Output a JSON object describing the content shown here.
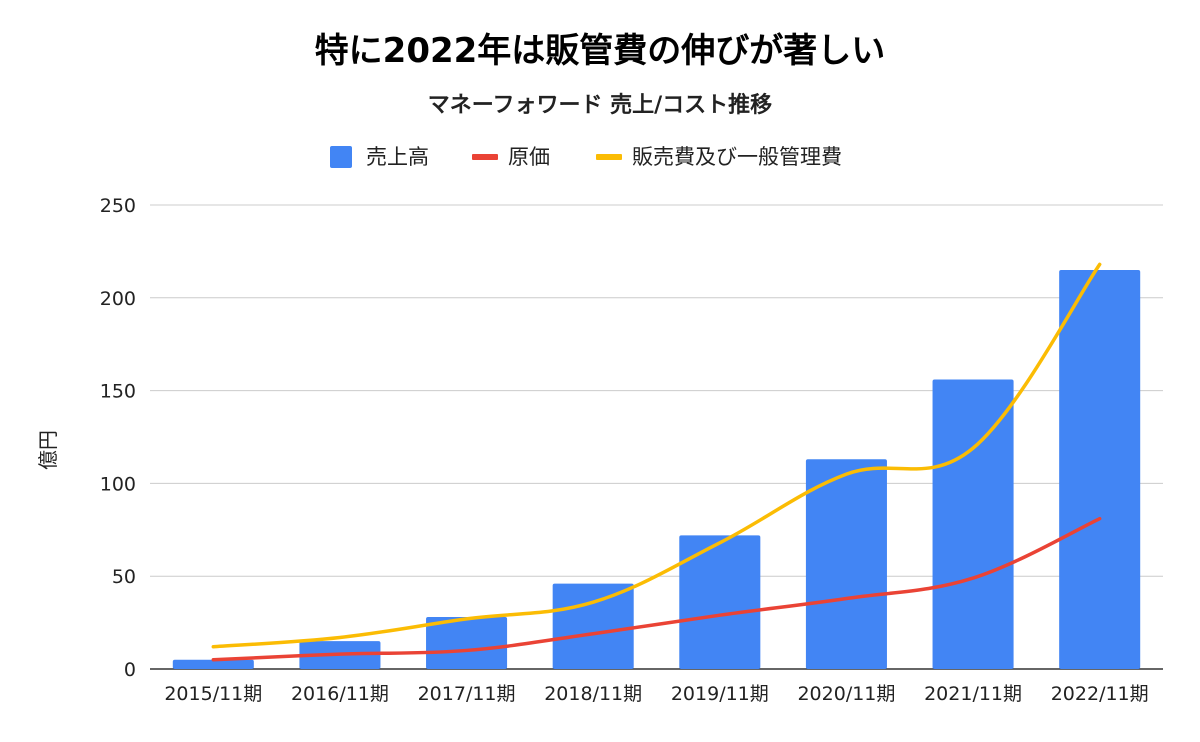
{
  "chart_data": {
    "type": "bar",
    "title": "特に2022年は販管費の伸びが著しい",
    "subtitle": "マネーフォワード 売上/コスト推移",
    "ylabel": "億円",
    "xlabel": "",
    "ylim": [
      0,
      250
    ],
    "yticks": [
      0,
      50,
      100,
      150,
      200,
      250
    ],
    "grid": true,
    "legend_position": "top",
    "categories": [
      "2015/11期",
      "2016/11期",
      "2017/11期",
      "2018/11期",
      "2019/11期",
      "2020/11期",
      "2021/11期",
      "2022/11期"
    ],
    "series": [
      {
        "name": "売上高",
        "type": "bar",
        "color": "#4285F4",
        "values": [
          5,
          15,
          28,
          46,
          72,
          113,
          156,
          215
        ]
      },
      {
        "name": "原価",
        "type": "line",
        "color": "#EA4335",
        "values": [
          5,
          8,
          10,
          19,
          29,
          38,
          49,
          81
        ]
      },
      {
        "name": "販売費及び一般管理費",
        "type": "line",
        "color": "#FBBC04",
        "values": [
          12,
          17,
          27,
          36,
          68,
          105,
          119,
          218
        ]
      }
    ]
  }
}
